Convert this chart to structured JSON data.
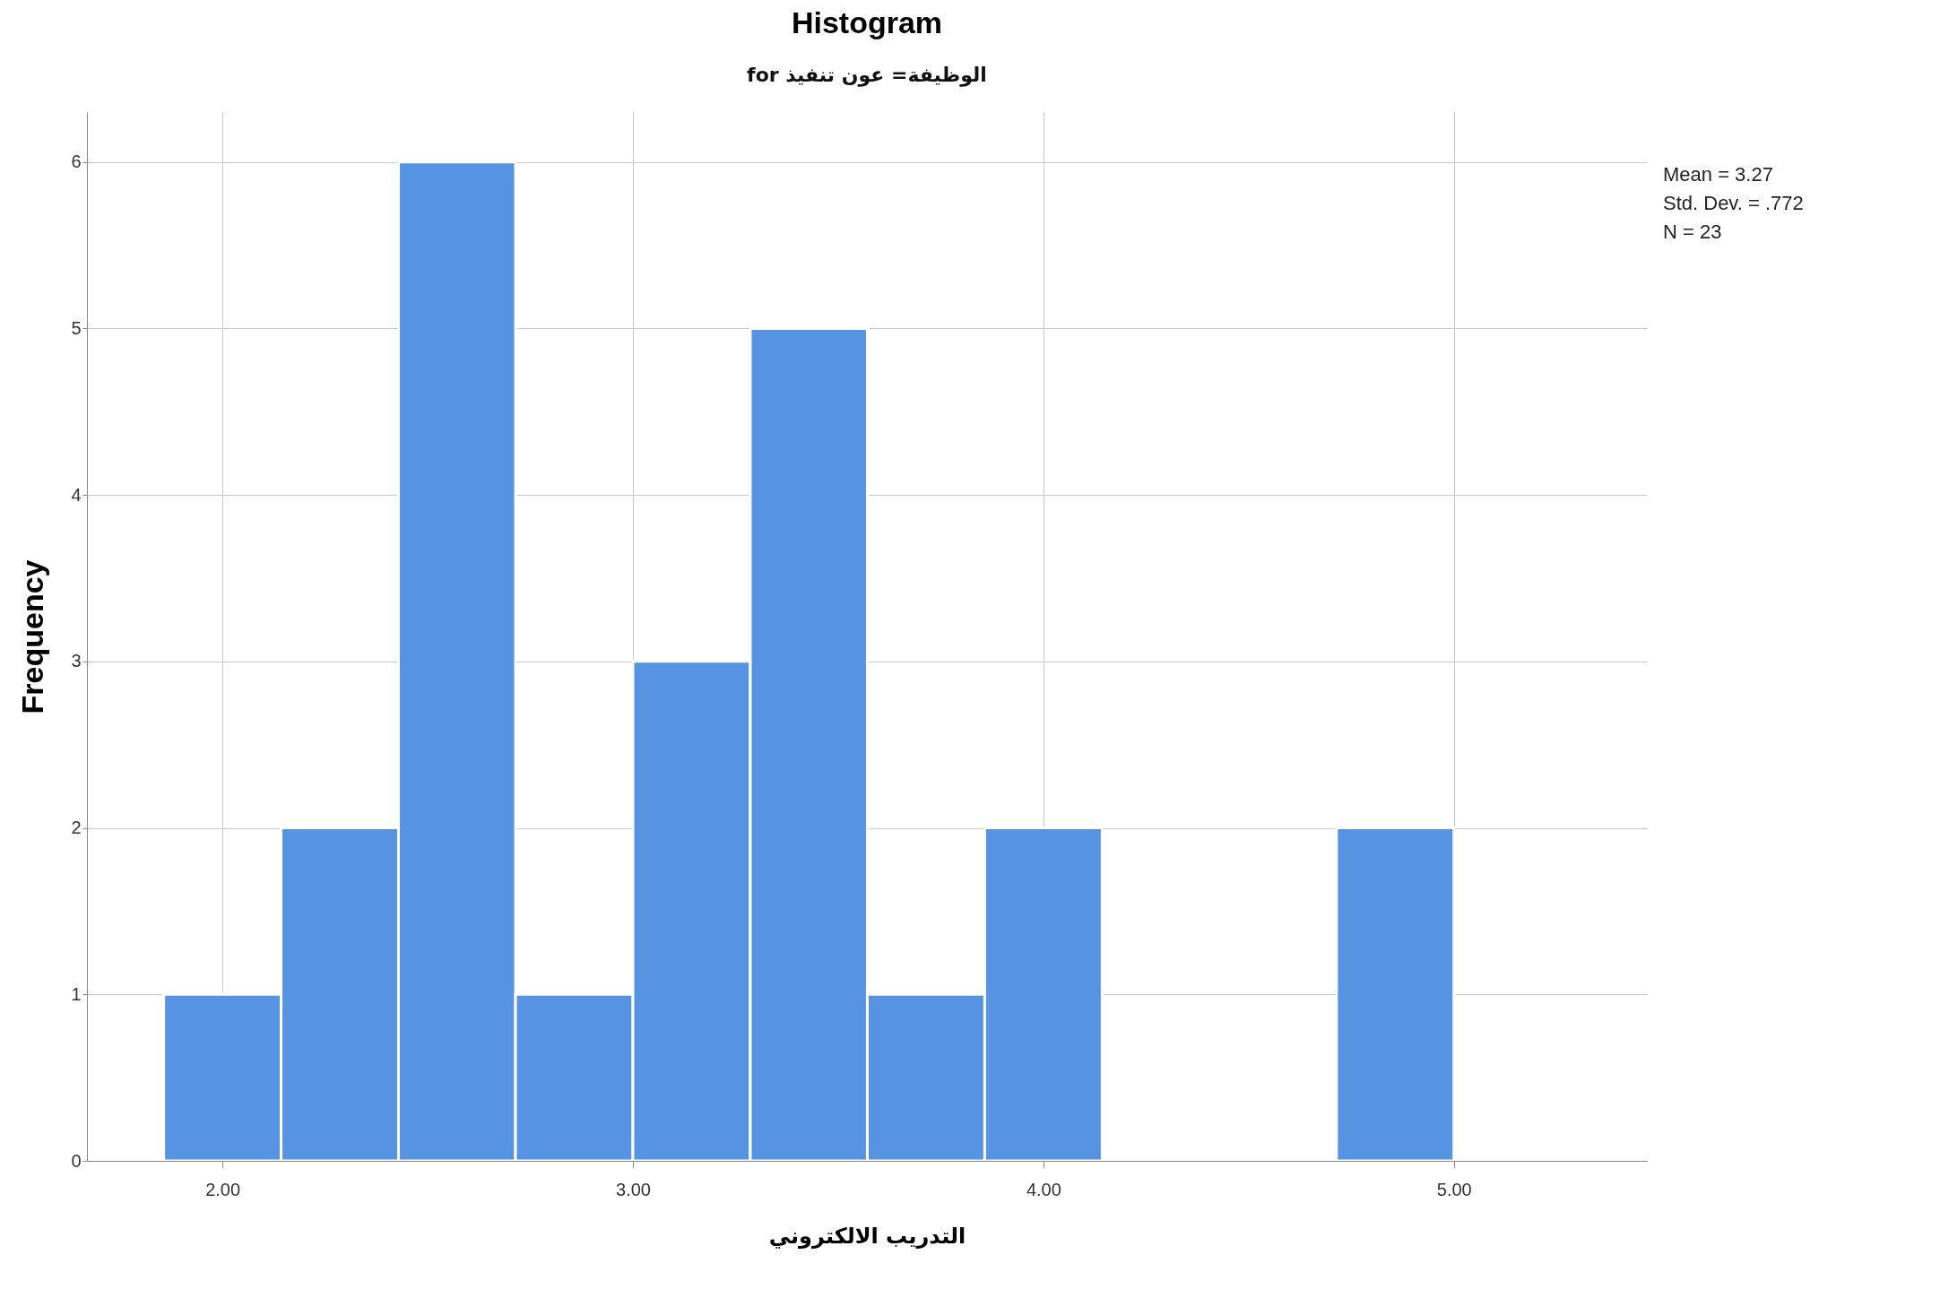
{
  "chart_data": {
    "type": "histogram",
    "title": "Histogram",
    "subtitle": "for الوظيفة= عون تنفيذ",
    "xlabel": "التدريب الالكتروني",
    "ylabel": "Frequency",
    "bins": [
      1.857,
      2.143,
      2.429,
      2.714,
      3.0,
      3.286,
      3.571,
      3.857,
      4.143,
      4.429,
      4.714,
      5.0
    ],
    "values": [
      1,
      2,
      6,
      1,
      3,
      5,
      1,
      2,
      0,
      0,
      2
    ],
    "color": "#5694e3",
    "xlim": [
      1.67,
      5.47
    ],
    "xticks": [
      {
        "value": 2,
        "label": "2.00"
      },
      {
        "value": 3,
        "label": "3.00"
      },
      {
        "value": 4,
        "label": "4.00"
      },
      {
        "value": 5,
        "label": "5.00"
      }
    ],
    "ylim": [
      0,
      6.3
    ],
    "yticks": [
      0,
      1,
      2,
      3,
      4,
      5,
      6
    ],
    "grid": true,
    "annotations": [
      "Mean = 3.27",
      "Std. Dev. = .772",
      "N = 23"
    ]
  }
}
